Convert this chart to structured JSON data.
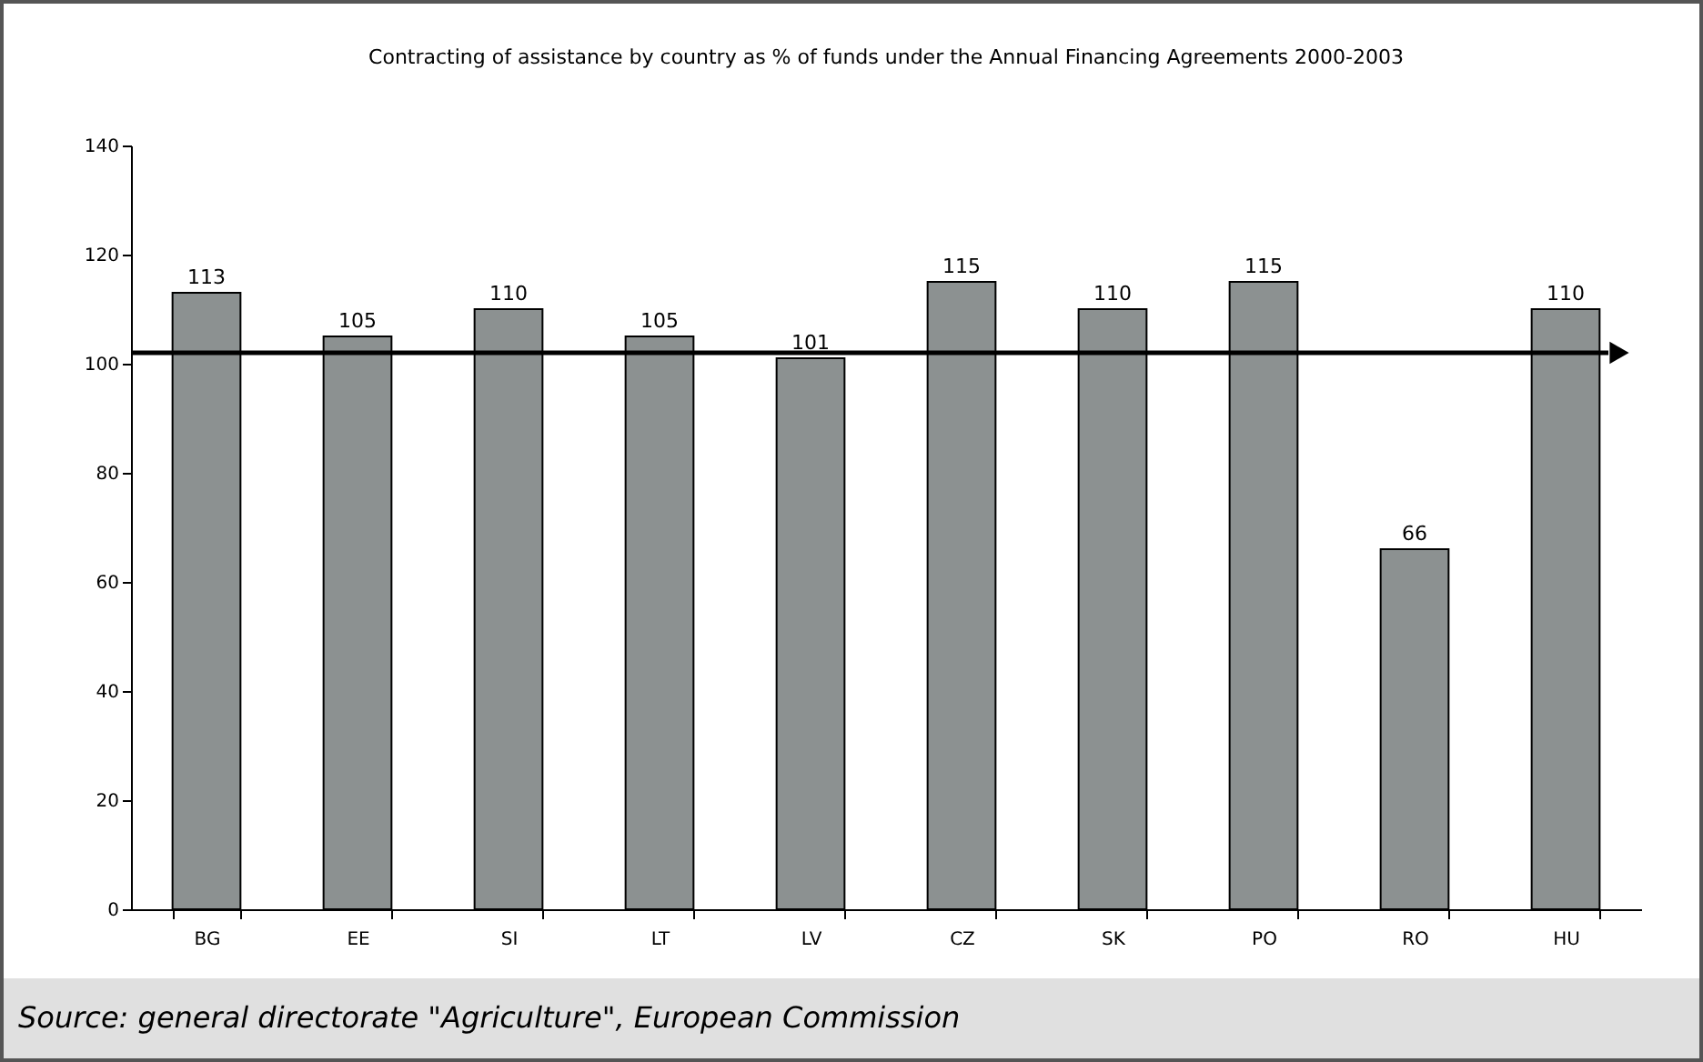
{
  "chart_data": {
    "type": "bar",
    "title": "Contracting of assistance by country as % of funds under the Annual Financing Agreements 2000-2003",
    "categories": [
      "BG",
      "EE",
      "SI",
      "LT",
      "LV",
      "CZ",
      "SK",
      "PO",
      "RO",
      "HU"
    ],
    "values": [
      113,
      105,
      110,
      105,
      101,
      115,
      110,
      115,
      66,
      110
    ],
    "color": "#8c9191",
    "ylim": [
      0,
      140
    ],
    "yticks": [
      0,
      20,
      40,
      60,
      80,
      100,
      120,
      140
    ],
    "grid": false,
    "data_labels": true,
    "ref_lines": [
      {
        "axis": "y",
        "value": 102,
        "color": "#000000"
      }
    ],
    "annotations": [
      "Source: general directorate \"Agriculture\", European Commission"
    ]
  }
}
